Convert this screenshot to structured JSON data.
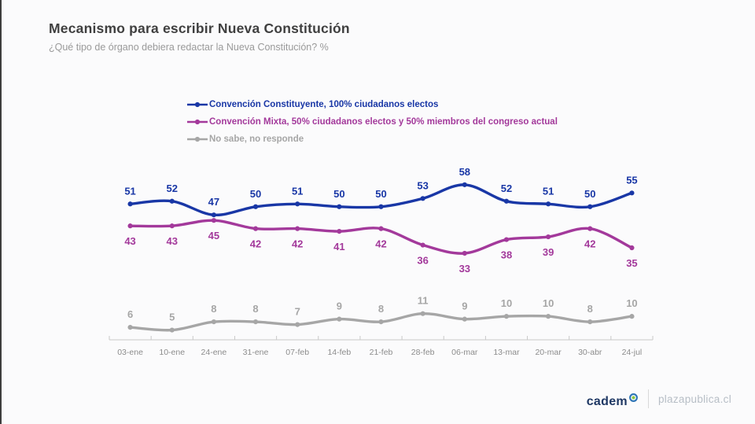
{
  "header": {
    "title": "Mecanismo para escribir Nueva Constitución",
    "subtitle": "¿Qué tipo de órgano debiera redactar la Nueva Constitución? %"
  },
  "chart_data": {
    "type": "line",
    "title": "Mecanismo para escribir Nueva Constitución",
    "categories": [
      "03-ene",
      "10-ene",
      "24-ene",
      "31-ene",
      "07-feb",
      "14-feb",
      "21-feb",
      "28-feb",
      "06-mar",
      "13-mar",
      "20-mar",
      "30-abr",
      "24-jul"
    ],
    "series": [
      {
        "name": "Convención Constituyente, 100% ciudadanos electos",
        "color": "#1937A6",
        "values": [
          51,
          52,
          47,
          50,
          51,
          50,
          50,
          53,
          58,
          52,
          51,
          50,
          55
        ],
        "label_position": "above"
      },
      {
        "name": "Convención Mixta, 50% ciudadanos electos y 50% miembros del congreso actual",
        "color": "#A3399B",
        "values": [
          43,
          43,
          45,
          42,
          42,
          41,
          42,
          36,
          33,
          38,
          39,
          42,
          35
        ],
        "label_position": "below"
      },
      {
        "name": "No sabe, no responde",
        "color": "#A6A6A6",
        "values": [
          6,
          5,
          8,
          8,
          7,
          9,
          8,
          11,
          9,
          10,
          10,
          8,
          10
        ],
        "label_position": "above"
      }
    ],
    "legend_position": "top-left-of-plot",
    "grid": false,
    "ylim": [
      0,
      65
    ],
    "axis_color": "#C9C9C9",
    "tick_label_color": "#8C8C8C"
  },
  "footer": {
    "brand": "cadem",
    "source": "plazapublica.cl"
  }
}
